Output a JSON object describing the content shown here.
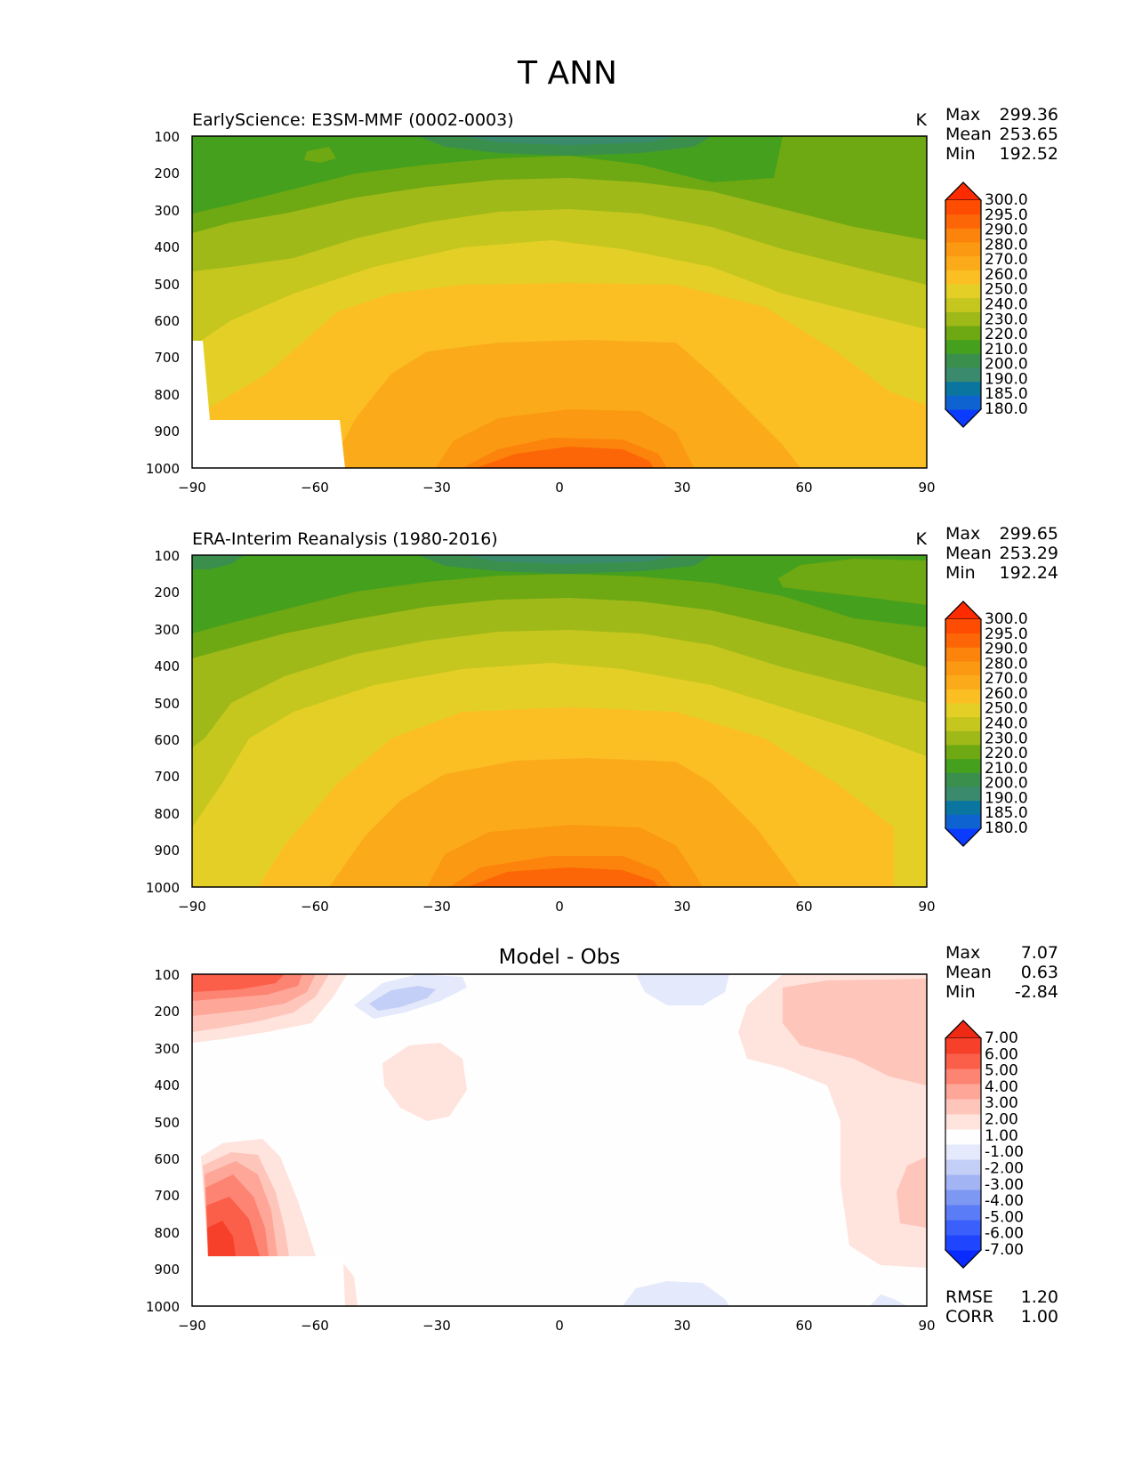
{
  "figure": {
    "title": "T ANN"
  },
  "colors": {
    "abs_levels": [
      "#0b3bff",
      "#0f63d0",
      "#0a76a0",
      "#3a8a6e",
      "#3a8f4c",
      "#45a01e",
      "#6ea812",
      "#9fb918",
      "#c5c61e",
      "#e4cf26",
      "#fbbf24",
      "#fbab1a",
      "#fb9912",
      "#fc830c",
      "#fd6606",
      "#fe4d02",
      "#ff2b00"
    ],
    "diff_levels": [
      "#0a2bff",
      "#1f45ff",
      "#3a5ffb",
      "#5a7cf6",
      "#7d98f3",
      "#a3b4f5",
      "#c4cff7",
      "#e4e9fb",
      "#fefefe",
      "#ffe3dd",
      "#fec6bb",
      "#fea697",
      "#fd8473",
      "#fb5f4a",
      "#f6402a",
      "#ee2a14"
    ]
  },
  "panels": [
    {
      "title": "EarlyScience: E3SM-MMF (0002-0003)",
      "units": "K",
      "stats": {
        "max_label": "Max",
        "max": "299.36",
        "mean_label": "Mean",
        "mean": "253.65",
        "min_label": "Min",
        "min": "192.52"
      },
      "colorbar_labels": [
        "300.0",
        "295.0",
        "290.0",
        "280.0",
        "270.0",
        "260.0",
        "250.0",
        "240.0",
        "230.0",
        "220.0",
        "210.0",
        "200.0",
        "190.0",
        "185.0",
        "180.0"
      ],
      "chart_data": {
        "type": "heatmap",
        "title": "EarlyScience: E3SM-MMF (0002-0003)",
        "xlabel": "",
        "ylabel": "",
        "xlim": [
          -90,
          90
        ],
        "ylim": [
          1000,
          100
        ],
        "x_ticks": [
          "−90",
          "−60",
          "−30",
          "0",
          "30",
          "60",
          "90"
        ],
        "y_ticks": [
          "100",
          "200",
          "300",
          "400",
          "500",
          "600",
          "700",
          "800",
          "900",
          "1000"
        ],
        "contour_levels": [
          180,
          185,
          190,
          200,
          210,
          220,
          230,
          240,
          250,
          260,
          270,
          280,
          290,
          295,
          300
        ],
        "approx_temperature_K": {
          "100hPa_equator": 195,
          "100hPa_poles": 215,
          "500hPa_equator": 265,
          "1000hPa_equator": 299,
          "1000hPa_north_pole": 258,
          "max": 299.36,
          "mean": 253.65,
          "min": 192.52
        },
        "masked_region": "below ground near Antarctica (~90S to 53S, below ~860 hPa)"
      }
    },
    {
      "title": "ERA-Interim Reanalysis (1980-2016)",
      "units": "K",
      "stats": {
        "max_label": "Max",
        "max": "299.65",
        "mean_label": "Mean",
        "mean": "253.29",
        "min_label": "Min",
        "min": "192.24"
      },
      "colorbar_labels": [
        "300.0",
        "295.0",
        "290.0",
        "280.0",
        "270.0",
        "260.0",
        "250.0",
        "240.0",
        "230.0",
        "220.0",
        "210.0",
        "200.0",
        "190.0",
        "185.0",
        "180.0"
      ],
      "chart_data": {
        "type": "heatmap",
        "title": "ERA-Interim Reanalysis (1980-2016)",
        "xlabel": "",
        "ylabel": "",
        "xlim": [
          -90,
          90
        ],
        "ylim": [
          1000,
          100
        ],
        "x_ticks": [
          "−90",
          "−60",
          "−30",
          "0",
          "30",
          "60",
          "90"
        ],
        "y_ticks": [
          "100",
          "200",
          "300",
          "400",
          "500",
          "600",
          "700",
          "800",
          "900",
          "1000"
        ],
        "contour_levels": [
          180,
          185,
          190,
          200,
          210,
          220,
          230,
          240,
          250,
          260,
          270,
          280,
          290,
          295,
          300
        ],
        "approx_temperature_K": {
          "100hPa_equator": 195,
          "100hPa_poles": 212,
          "500hPa_equator": 265,
          "1000hPa_equator": 299,
          "1000hPa_north_pole": 259,
          "max": 299.65,
          "mean": 253.29,
          "min": 192.24
        }
      }
    },
    {
      "title": "Model - Obs",
      "stats": {
        "max_label": "Max",
        "max": "7.07",
        "mean_label": "Mean",
        "mean": "0.63",
        "min_label": "Min",
        "min": "-2.84"
      },
      "colorbar_labels": [
        "7.00",
        "6.00",
        "5.00",
        "4.00",
        "3.00",
        "2.00",
        "1.00",
        "-1.00",
        "-2.00",
        "-3.00",
        "-4.00",
        "-5.00",
        "-6.00",
        "-7.00"
      ],
      "metrics": {
        "rmse_label": "RMSE",
        "rmse": "1.20",
        "corr_label": "CORR",
        "corr": "1.00"
      },
      "chart_data": {
        "type": "heatmap",
        "title": "Model - Obs",
        "xlim": [
          -90,
          90
        ],
        "ylim": [
          1000,
          100
        ],
        "x_ticks": [
          "−90",
          "−60",
          "−30",
          "0",
          "30",
          "60",
          "90"
        ],
        "y_ticks": [
          "100",
          "200",
          "300",
          "400",
          "500",
          "600",
          "700",
          "800",
          "900",
          "1000"
        ],
        "contour_levels": [
          -7,
          -6,
          -5,
          -4,
          -3,
          -2,
          -1,
          1,
          2,
          3,
          4,
          5,
          6,
          7
        ],
        "features": [
          {
            "region": "90S-60S, 100-300 hPa",
            "sign": "positive",
            "peak": 6
          },
          {
            "region": "88S-65S, 600-860 hPa",
            "sign": "positive",
            "peak": 7
          },
          {
            "region": "45S-30S, 120-210 hPa",
            "sign": "negative",
            "peak": -3
          },
          {
            "region": "43S-23S, 280-500 hPa",
            "sign": "positive",
            "peak": 2
          },
          {
            "region": "35N-90N, 100-900 hPa",
            "sign": "positive",
            "peak": 3
          },
          {
            "region": "20N-40N near 100 hPa",
            "sign": "negative",
            "peak": -2
          },
          {
            "region": "15N-40N near 1000 hPa",
            "sign": "negative",
            "peak": -1.5
          }
        ],
        "max": 7.07,
        "mean": 0.63,
        "min": -2.84,
        "rmse": 1.2,
        "corr": 1.0
      }
    }
  ]
}
